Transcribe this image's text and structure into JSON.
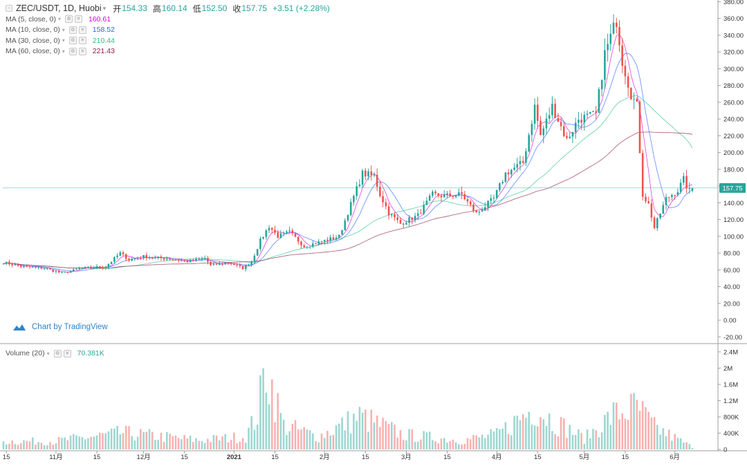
{
  "header": {
    "symbol": "ZEC/USDT, 1D, Huobi",
    "open_label": "开",
    "open": "154.33",
    "high_label": "高",
    "high": "160.14",
    "low_label": "低",
    "low": "152.50",
    "close_label": "收",
    "close": "157.75",
    "change": "+3.51 (+2.28%)"
  },
  "indicators": [
    {
      "label": "MA (5, close, 0)",
      "value": "160.61",
      "color": "#d500d5"
    },
    {
      "label": "MA (10, close, 0)",
      "value": "158.52",
      "color": "#2962ff"
    },
    {
      "label": "MA (30, close, 0)",
      "value": "210.44",
      "color": "#26c281"
    },
    {
      "label": "MA (60, close, 0)",
      "value": "221.43",
      "color": "#8b1a4a"
    }
  ],
  "volume_indicator": {
    "label": "Volume (20)",
    "value": "70.381K"
  },
  "branding": "Chart by TradingView",
  "colors": {
    "up": "#26a69a",
    "down": "#ef5350",
    "last_price": "#26a69a"
  },
  "chart_data": {
    "type": "candlestick",
    "price_axis": {
      "ylim": [
        -28,
        382
      ],
      "ticks": [
        "380.00",
        "360.00",
        "340.00",
        "320.00",
        "300.00",
        "280.00",
        "260.00",
        "240.00",
        "220.00",
        "200.00",
        "180.00",
        "160.00",
        "140.00",
        "120.00",
        "100.00",
        "80.00",
        "60.00",
        "40.00",
        "20.00",
        "0.00",
        "-20.00"
      ],
      "last_price_label": "157.75",
      "last_price": 157.75
    },
    "volume_axis": {
      "ylim": [
        0,
        2.45
      ],
      "unit": "M",
      "ticks": [
        {
          "label": "2.4M",
          "v": 2.4
        },
        {
          "label": "2M",
          "v": 2.0
        },
        {
          "label": "1.6M",
          "v": 1.6
        },
        {
          "label": "1.2M",
          "v": 1.2
        },
        {
          "label": "800K",
          "v": 0.8
        },
        {
          "label": "400K",
          "v": 0.4
        },
        {
          "label": "0",
          "v": 0
        }
      ]
    },
    "x_axis": {
      "start_date": "2020-10-14",
      "end_date": "2021-06-07",
      "labels": [
        {
          "label": "15",
          "date": "2020-10-15"
        },
        {
          "label": "11月",
          "date": "2020-11-01"
        },
        {
          "label": "15",
          "date": "2020-11-15"
        },
        {
          "label": "12月",
          "date": "2020-12-01"
        },
        {
          "label": "15",
          "date": "2020-12-15"
        },
        {
          "label": "2021",
          "date": "2021-01-01",
          "bold": true
        },
        {
          "label": "15",
          "date": "2021-01-15"
        },
        {
          "label": "2月",
          "date": "2021-02-01"
        },
        {
          "label": "15",
          "date": "2021-02-15"
        },
        {
          "label": "3月",
          "date": "2021-03-01"
        },
        {
          "label": "15",
          "date": "2021-03-15"
        },
        {
          "label": "4月",
          "date": "2021-04-01"
        },
        {
          "label": "15",
          "date": "2021-04-15"
        },
        {
          "label": "5月",
          "date": "2021-05-01"
        },
        {
          "label": "15",
          "date": "2021-05-15"
        },
        {
          "label": "6月",
          "date": "2021-06-01"
        }
      ]
    },
    "close_keypoints": [
      [
        "2020-10-14",
        69
      ],
      [
        "2020-10-20",
        64
      ],
      [
        "2020-10-28",
        62
      ],
      [
        "2020-11-03",
        56
      ],
      [
        "2020-11-10",
        62
      ],
      [
        "2020-11-18",
        64
      ],
      [
        "2020-11-23",
        80
      ],
      [
        "2020-11-26",
        72
      ],
      [
        "2020-12-01",
        76
      ],
      [
        "2020-12-10",
        73
      ],
      [
        "2020-12-16",
        70
      ],
      [
        "2020-12-22",
        74
      ],
      [
        "2020-12-24",
        65
      ],
      [
        "2020-12-30",
        69
      ],
      [
        "2021-01-04",
        62
      ],
      [
        "2021-01-07",
        70
      ],
      [
        "2021-01-10",
        95
      ],
      [
        "2021-01-13",
        112
      ],
      [
        "2021-01-16",
        100
      ],
      [
        "2021-01-20",
        105
      ],
      [
        "2021-01-25",
        88
      ],
      [
        "2021-01-30",
        93
      ],
      [
        "2021-02-06",
        100
      ],
      [
        "2021-02-10",
        138
      ],
      [
        "2021-02-14",
        175
      ],
      [
        "2021-02-18",
        172
      ],
      [
        "2021-02-20",
        150
      ],
      [
        "2021-02-23",
        128
      ],
      [
        "2021-02-27",
        115
      ],
      [
        "2021-03-05",
        125
      ],
      [
        "2021-03-10",
        150
      ],
      [
        "2021-03-14",
        148
      ],
      [
        "2021-03-20",
        150
      ],
      [
        "2021-03-25",
        127
      ],
      [
        "2021-03-31",
        145
      ],
      [
        "2021-04-04",
        175
      ],
      [
        "2021-04-10",
        188
      ],
      [
        "2021-04-14",
        255
      ],
      [
        "2021-04-16",
        220
      ],
      [
        "2021-04-20",
        255
      ],
      [
        "2021-04-25",
        215
      ],
      [
        "2021-04-29",
        240
      ],
      [
        "2021-05-05",
        245
      ],
      [
        "2021-05-08",
        318
      ],
      [
        "2021-05-12",
        358
      ],
      [
        "2021-05-14",
        310
      ],
      [
        "2021-05-17",
        270
      ],
      [
        "2021-05-19",
        255
      ],
      [
        "2021-05-21",
        150
      ],
      [
        "2021-05-23",
        138
      ],
      [
        "2021-05-25",
        110
      ],
      [
        "2021-05-29",
        145
      ],
      [
        "2021-06-02",
        155
      ],
      [
        "2021-06-04",
        168
      ],
      [
        "2021-06-05",
        160
      ],
      [
        "2021-06-06",
        154.33
      ],
      [
        "2021-06-07",
        157.75
      ]
    ],
    "volume_keypoints": [
      [
        "2020-10-14",
        0.22
      ],
      [
        "2020-10-31",
        0.22
      ],
      [
        "2020-11-24",
        0.45
      ],
      [
        "2020-12-20",
        0.25
      ],
      [
        "2021-01-05",
        0.35
      ],
      [
        "2021-01-09",
        0.95
      ],
      [
        "2021-01-12",
        2.3
      ],
      [
        "2021-01-14",
        1.7
      ],
      [
        "2021-01-18",
        0.65
      ],
      [
        "2021-01-30",
        0.35
      ],
      [
        "2021-02-13",
        0.9
      ],
      [
        "2021-02-16",
        0.8
      ],
      [
        "2021-02-28",
        0.4
      ],
      [
        "2021-03-20",
        0.25
      ],
      [
        "2021-04-01",
        0.4
      ],
      [
        "2021-04-14",
        1.15
      ],
      [
        "2021-04-20",
        0.8
      ],
      [
        "2021-05-01",
        0.3
      ],
      [
        "2021-05-11",
        0.95
      ],
      [
        "2021-05-19",
        1.15
      ],
      [
        "2021-05-25",
        0.6
      ],
      [
        "2021-06-07",
        0.07
      ]
    ],
    "ma_series": [
      {
        "name": "MA (5, close, 0)",
        "period": 5,
        "color": "#d500d5"
      },
      {
        "name": "MA (10, close, 0)",
        "period": 10,
        "color": "#2962ff"
      },
      {
        "name": "MA (30, close, 0)",
        "period": 30,
        "color": "#26c281"
      },
      {
        "name": "MA (60, close, 0)",
        "period": 60,
        "color": "#8b1a4a"
      }
    ]
  }
}
